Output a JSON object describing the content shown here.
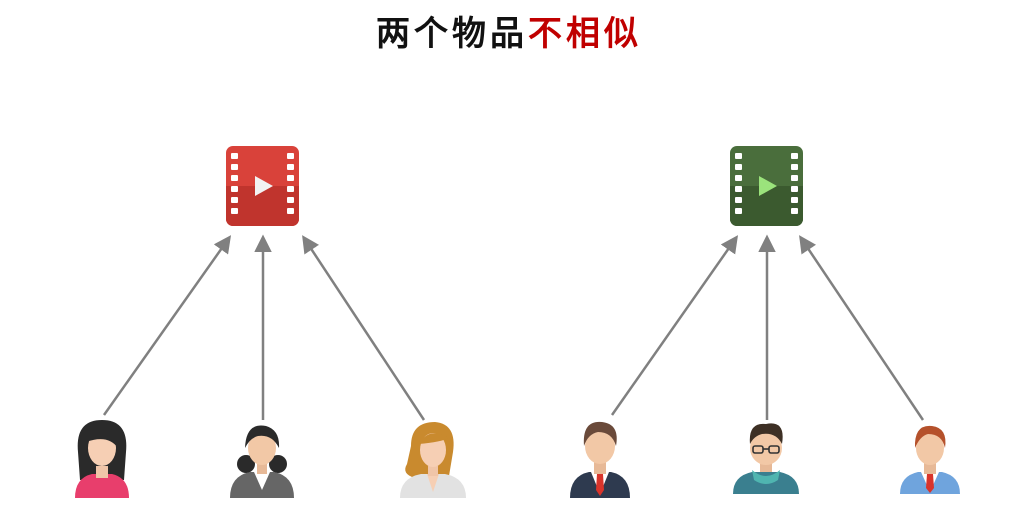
{
  "title": {
    "prefix": "两个物品",
    "emphasis": "不相似"
  },
  "colors": {
    "title_text": "#111111",
    "title_emphasis": "#c00000",
    "arrow": "#808080",
    "video_left": "#d9423a",
    "video_right": "#4a6e3c",
    "play_left": "#ffffff",
    "play_right": "#9be37c"
  },
  "groups": [
    {
      "item": {
        "icon": "video-file-icon",
        "color": "red"
      },
      "users": [
        {
          "icon": "woman-user-icon",
          "variant": "dark-hair-pink-shirt"
        },
        {
          "icon": "businesswoman-user-icon",
          "variant": "gray-suit"
        },
        {
          "icon": "blonde-woman-user-icon",
          "variant": "white-blouse"
        }
      ]
    },
    {
      "item": {
        "icon": "video-file-icon",
        "color": "green"
      },
      "users": [
        {
          "icon": "businessman-user-icon",
          "variant": "navy-suit-red-tie"
        },
        {
          "icon": "hipster-man-user-icon",
          "variant": "glasses-teal-scarf"
        },
        {
          "icon": "man-user-icon",
          "variant": "blue-vest-red-tie"
        }
      ]
    }
  ]
}
